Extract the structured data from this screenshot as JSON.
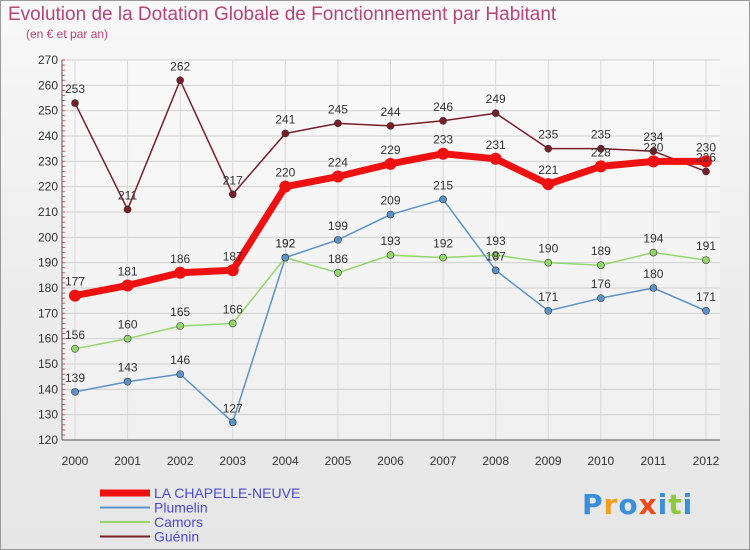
{
  "chart_data": {
    "type": "line",
    "title": "Evolution de la Dotation Globale de Fonctionnement par Habitant",
    "subtitle": "(en € et par an)",
    "xlabel": "",
    "ylabel": "",
    "x": [
      "2000",
      "2001",
      "2002",
      "2003",
      "2004",
      "2005",
      "2006",
      "2007",
      "2008",
      "2009",
      "2010",
      "2011",
      "2012"
    ],
    "ylim": [
      120,
      270
    ],
    "ytick_step": 10,
    "grid": true,
    "legend_position": "bottom-left",
    "series": [
      {
        "name": "LA CHAPELLE-NEUVE",
        "color": "#ee1111",
        "values": [
          177,
          181,
          186,
          187,
          220,
          224,
          229,
          233,
          231,
          221,
          228,
          230,
          230
        ]
      },
      {
        "name": "Plumelin",
        "color": "#5b93c8",
        "values": [
          139,
          143,
          146,
          127,
          192,
          199,
          209,
          215,
          187,
          171,
          176,
          180,
          171
        ]
      },
      {
        "name": "Camors",
        "color": "#93d76b",
        "values": [
          156,
          160,
          165,
          166,
          192,
          186,
          193,
          192,
          193,
          190,
          189,
          194,
          191
        ]
      },
      {
        "name": "Guénin",
        "color": "#7a1f28",
        "values": [
          253,
          211,
          262,
          217,
          241,
          245,
          244,
          246,
          249,
          235,
          235,
          234,
          226
        ]
      }
    ]
  },
  "brand": {
    "text": "Proxiti",
    "letters": [
      {
        "ch": "P",
        "color": "#3a8fd8"
      },
      {
        "ch": "r",
        "color": "#f0a020"
      },
      {
        "ch": "o",
        "color": "#3a8fd8"
      },
      {
        "ch": "x",
        "color": "#e84a1a"
      },
      {
        "ch": "i",
        "color": "#3a8fd8"
      },
      {
        "ch": "t",
        "color": "#8fc83a"
      },
      {
        "ch": "i",
        "color": "#3a8fd8"
      }
    ]
  }
}
